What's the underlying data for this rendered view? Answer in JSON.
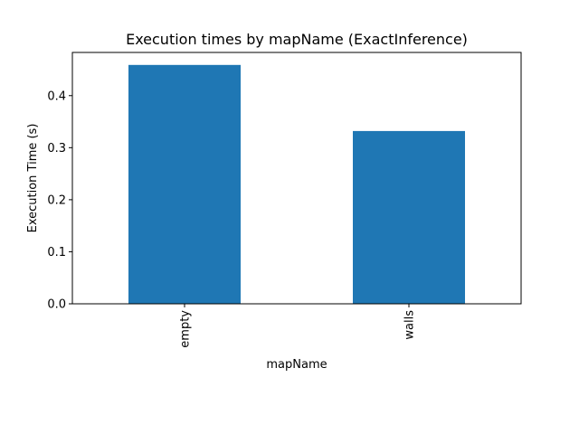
{
  "chart_data": {
    "type": "bar",
    "title": "Execution times by mapName (ExactInference)",
    "xlabel": "mapName",
    "ylabel": "Execution Time (s)",
    "categories": [
      "empty",
      "walls"
    ],
    "values": [
      0.459,
      0.332
    ],
    "ylim": [
      0,
      0.483
    ],
    "yticks": [
      0.0,
      0.1,
      0.2,
      0.3,
      0.4
    ],
    "ytick_labels": [
      "0.0",
      "0.1",
      "0.2",
      "0.3",
      "0.4"
    ],
    "bar_color": "#1f77b4",
    "grid": false,
    "legend": "none"
  }
}
